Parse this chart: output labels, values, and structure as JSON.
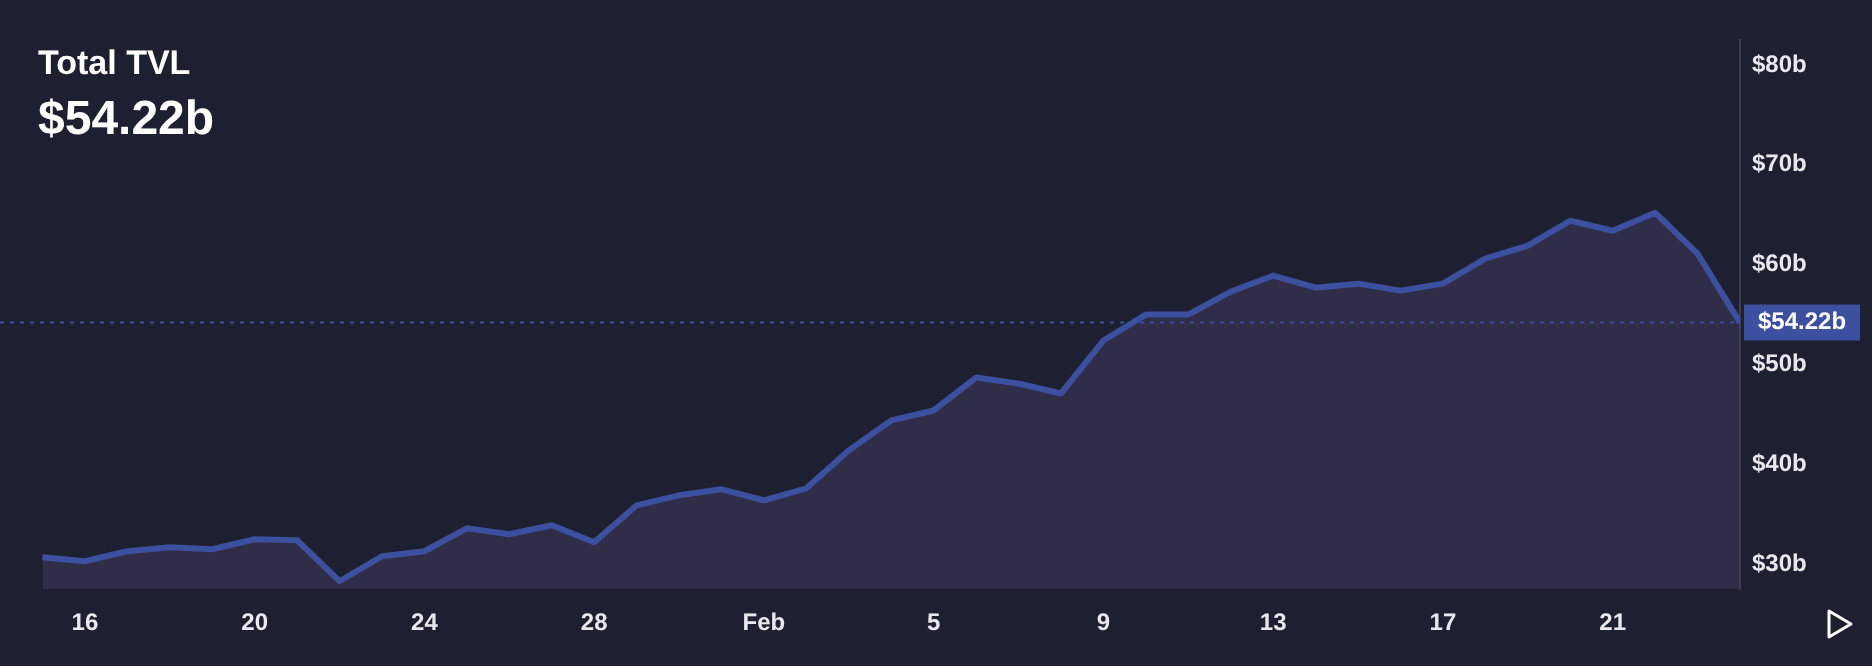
{
  "chart_data": {
    "type": "area",
    "title": "Total TVL",
    "subtitle": "$54.22b",
    "x": [
      "--01-15",
      "--01-16",
      "--01-17",
      "--01-18",
      "--01-19",
      "--01-20",
      "--01-21",
      "--01-22",
      "--01-23",
      "--01-24",
      "--01-25",
      "--01-26",
      "--01-27",
      "--01-28",
      "--01-29",
      "--01-30",
      "--01-31",
      "--02-01",
      "--02-02",
      "--02-03",
      "--02-04",
      "--02-05",
      "--02-06",
      "--02-07",
      "--02-08",
      "--02-09",
      "--02-10",
      "--02-11",
      "--02-12",
      "--02-13",
      "--02-14",
      "--02-15",
      "--02-16",
      "--02-17",
      "--02-18",
      "--02-19",
      "--02-20",
      "--02-21",
      "--02-22",
      "--02-23",
      "--02-24"
    ],
    "series": [
      {
        "color": "#3d4f9f",
        "values": [
          30.7,
          30.3,
          31.3,
          31.7,
          31.5,
          32.5,
          32.4,
          28.3,
          30.8,
          31.3,
          33.6,
          33.0,
          33.9,
          32.2,
          35.9,
          36.9,
          37.5,
          36.4,
          37.6,
          41.4,
          44.4,
          45.4,
          48.7,
          48.1,
          47.1,
          52.4,
          55.0,
          55.0,
          57.3,
          58.9,
          57.7,
          58.1,
          57.4,
          58.1,
          60.6,
          61.9,
          64.4,
          63.4,
          65.2,
          61.1,
          54.2
        ]
      }
    ],
    "xlim": [
      "--01-14",
      "--02-24"
    ],
    "xticks": [
      {
        "value": "--01-16",
        "label": "16"
      },
      {
        "value": "--01-20",
        "label": "20"
      },
      {
        "value": "--01-24",
        "label": "24"
      },
      {
        "value": "--01-28",
        "label": "28"
      },
      {
        "value": "--02-01",
        "label": "Feb"
      },
      {
        "value": "--02-05",
        "label": "5"
      },
      {
        "value": "--02-09",
        "label": "9"
      },
      {
        "value": "--02-13",
        "label": "13"
      },
      {
        "value": "--02-17",
        "label": "17"
      },
      {
        "value": "--02-21",
        "label": "21"
      }
    ],
    "ylim": [
      27.5,
      82.5
    ],
    "yticks": [
      {
        "value": 30,
        "label": "$30b"
      },
      {
        "value": 40,
        "label": "$40b"
      },
      {
        "value": 50,
        "label": "$50b"
      },
      {
        "value": 60,
        "label": "$60b"
      },
      {
        "value": 70,
        "label": "$70b"
      },
      {
        "value": 80,
        "label": "$80b"
      }
    ],
    "ref_lines": [
      {
        "axis": "y",
        "value": 54.22,
        "label": "$54.22b",
        "color": "#3d4f9f",
        "line_style": "dotted"
      }
    ],
    "legend": false,
    "marker": "none",
    "line_style": "solid"
  }
}
